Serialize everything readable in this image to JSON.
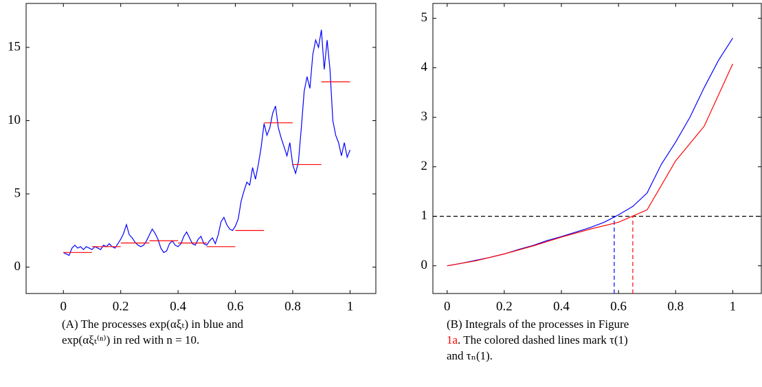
{
  "chart_data": [
    {
      "type": "line",
      "xlim": [
        -0.13,
        1.09
      ],
      "ylim": [
        -1.8,
        18
      ],
      "xticks": [
        0,
        0.2,
        0.4,
        0.6,
        0.8,
        1
      ],
      "yticks": [
        0,
        5,
        10,
        15
      ],
      "series": [
        {
          "color": "#0000ff",
          "x": [
            0,
            0.01,
            0.02,
            0.03,
            0.04,
            0.05,
            0.06,
            0.07,
            0.08,
            0.09,
            0.1,
            0.11,
            0.12,
            0.13,
            0.14,
            0.15,
            0.16,
            0.17,
            0.18,
            0.19,
            0.2,
            0.21,
            0.22,
            0.23,
            0.24,
            0.25,
            0.26,
            0.27,
            0.28,
            0.29,
            0.3,
            0.31,
            0.32,
            0.33,
            0.34,
            0.35,
            0.36,
            0.37,
            0.38,
            0.39,
            0.4,
            0.41,
            0.42,
            0.43,
            0.44,
            0.45,
            0.46,
            0.47,
            0.48,
            0.49,
            0.5,
            0.51,
            0.52,
            0.53,
            0.54,
            0.55,
            0.56,
            0.57,
            0.58,
            0.59,
            0.6,
            0.61,
            0.62,
            0.63,
            0.64,
            0.65,
            0.66,
            0.67,
            0.68,
            0.69,
            0.7,
            0.71,
            0.72,
            0.73,
            0.74,
            0.75,
            0.76,
            0.77,
            0.78,
            0.79,
            0.8,
            0.81,
            0.82,
            0.83,
            0.84,
            0.85,
            0.86,
            0.87,
            0.88,
            0.89,
            0.9,
            0.91,
            0.92,
            0.93,
            0.94,
            0.95,
            0.96,
            0.97,
            0.98,
            0.99,
            1
          ],
          "values": [
            1.0,
            0.9,
            0.8,
            1.3,
            1.5,
            1.3,
            1.4,
            1.2,
            1.4,
            1.3,
            1.2,
            1.4,
            1.3,
            1.2,
            1.5,
            1.4,
            1.6,
            1.4,
            1.3,
            1.6,
            1.9,
            2.3,
            2.9,
            2.2,
            2.0,
            1.7,
            1.5,
            1.4,
            1.5,
            1.8,
            2.2,
            2.6,
            2.3,
            1.9,
            1.3,
            1.0,
            1.1,
            1.6,
            1.8,
            1.5,
            1.4,
            1.6,
            2.1,
            2.4,
            2.0,
            1.6,
            1.5,
            1.9,
            2.1,
            1.6,
            1.5,
            1.8,
            2.0,
            1.6,
            2.2,
            3.1,
            3.4,
            2.9,
            2.6,
            2.5,
            2.8,
            3.3,
            4.5,
            5.2,
            5.8,
            5.6,
            6.8,
            6.0,
            7.0,
            8.2,
            9.8,
            9.0,
            9.5,
            10.5,
            11.0,
            9.5,
            8.8,
            8.2,
            7.6,
            8.5,
            7.0,
            6.4,
            7.2,
            9.5,
            12.0,
            13.0,
            12.2,
            14.5,
            15.5,
            15.0,
            16.2,
            13.5,
            15.5,
            13.5,
            10.0,
            9.0,
            8.5,
            7.6,
            8.5,
            7.5,
            8.0
          ]
        },
        {
          "color": "#ff0000",
          "x": [
            0,
            0.1,
            0.1,
            0.1,
            0.2,
            0.2,
            0.2,
            0.3,
            0.3,
            0.3,
            0.4,
            0.4,
            0.4,
            0.5,
            0.5,
            0.5,
            0.6,
            0.6,
            0.6,
            0.7,
            0.7,
            0.7,
            0.8,
            0.8,
            0.8,
            0.9,
            0.9,
            0.9,
            1
          ],
          "values": [
            1.0,
            1.0,
            null,
            1.4,
            1.4,
            null,
            1.65,
            1.65,
            null,
            1.8,
            1.8,
            null,
            1.65,
            1.65,
            null,
            1.4,
            1.4,
            null,
            2.5,
            2.5,
            null,
            9.85,
            9.85,
            null,
            7.0,
            7.0,
            null,
            12.65,
            12.65
          ]
        }
      ],
      "caption": [
        [
          "(A) The processes exp(αξₜ) in blue and"
        ],
        [
          "exp(αξₜ⁽ⁿ⁾) in red with n = 10."
        ]
      ]
    },
    {
      "type": "line",
      "xlim": [
        -0.05,
        1.1
      ],
      "ylim": [
        -0.56,
        5.3
      ],
      "xticks": [
        0,
        0.2,
        0.4,
        0.6,
        0.8,
        1
      ],
      "yticks": [
        0,
        1,
        2,
        3,
        4,
        5
      ],
      "series": [
        {
          "color": "#0000ff",
          "x": [
            0,
            0.05,
            0.1,
            0.15,
            0.2,
            0.25,
            0.3,
            0.35,
            0.4,
            0.45,
            0.5,
            0.55,
            0.6,
            0.65,
            0.7,
            0.75,
            0.8,
            0.85,
            0.9,
            0.95,
            1
          ],
          "values": [
            0,
            0.05,
            0.11,
            0.17,
            0.24,
            0.33,
            0.41,
            0.51,
            0.59,
            0.68,
            0.77,
            0.88,
            1.03,
            1.2,
            1.47,
            2.05,
            2.5,
            3.0,
            3.6,
            4.15,
            4.6
          ]
        },
        {
          "color": "#ff0000",
          "x": [
            0,
            0.1,
            0.2,
            0.3,
            0.4,
            0.5,
            0.6,
            0.7,
            0.8,
            0.9,
            1
          ],
          "values": [
            0,
            0.1,
            0.24,
            0.4,
            0.58,
            0.74,
            0.88,
            1.13,
            2.12,
            2.82,
            4.08
          ]
        }
      ],
      "reference_lines": [
        {
          "axis": "y",
          "value": 1,
          "color": "#000000"
        },
        {
          "axis": "x",
          "value": 0.585,
          "color": "#0000ff"
        },
        {
          "axis": "x",
          "value": 0.65,
          "color": "#ff0000"
        }
      ],
      "caption": [
        [
          "(B) Integrals of the processes in Figure"
        ],
        [
          {
            "text": "1a",
            "color": "#ff0000"
          },
          ". The colored dashed lines mark τ(1)"
        ],
        [
          "and τₙ(1)."
        ]
      ]
    }
  ]
}
